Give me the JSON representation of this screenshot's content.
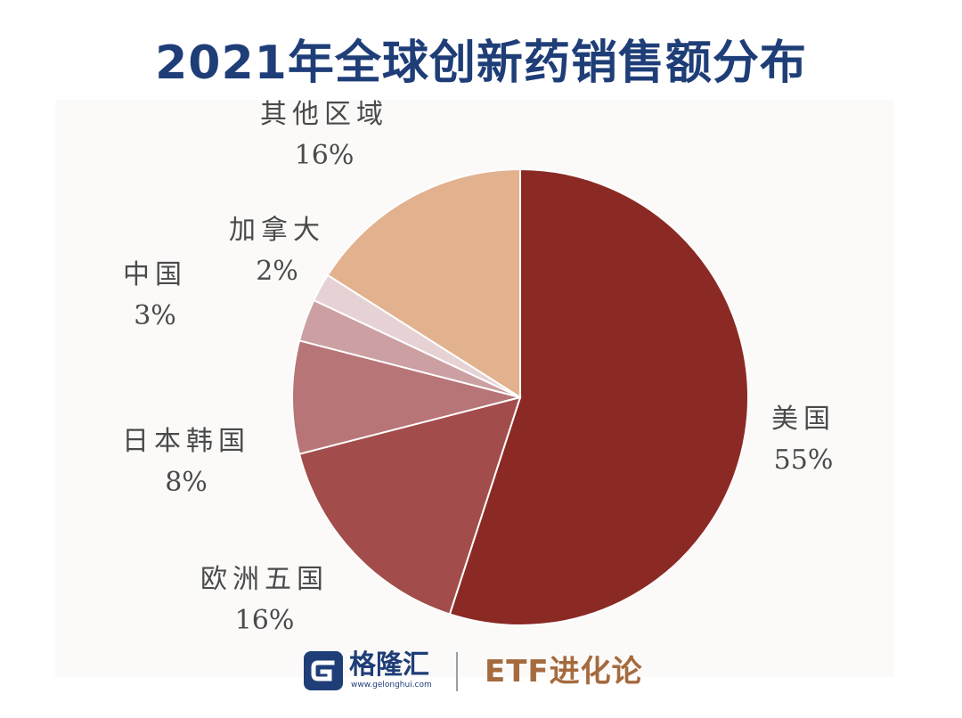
{
  "chart_data": {
    "type": "pie",
    "title": "2021年全球创新药销售额分布",
    "slices": [
      {
        "label": "美国",
        "value": 55,
        "value_label": "55%",
        "color": "#8b2a25"
      },
      {
        "label": "欧洲五国",
        "value": 16,
        "value_label": "16%",
        "color": "#a24d4b"
      },
      {
        "label": "日本韩国",
        "value": 8,
        "value_label": "8%",
        "color": "#b87577"
      },
      {
        "label": "中国",
        "value": 3,
        "value_label": "3%",
        "color": "#cca0a2"
      },
      {
        "label": "加拿大",
        "value": 2,
        "value_label": "2%",
        "color": "#e6d2d4"
      },
      {
        "label": "其他区域",
        "value": 16,
        "value_label": "16%",
        "color": "#e2b18e"
      }
    ],
    "start_angle_deg": 0,
    "direction": "clockwise",
    "legend": "none"
  },
  "footer": {
    "brand_name": "格隆汇",
    "brand_url": "www.gelonghui.com",
    "brand_icon": "gelonghui-logo-icon",
    "series_name": "ETF进化论",
    "brand_color": "#1f3e78",
    "series_color": "#a56a3d"
  }
}
